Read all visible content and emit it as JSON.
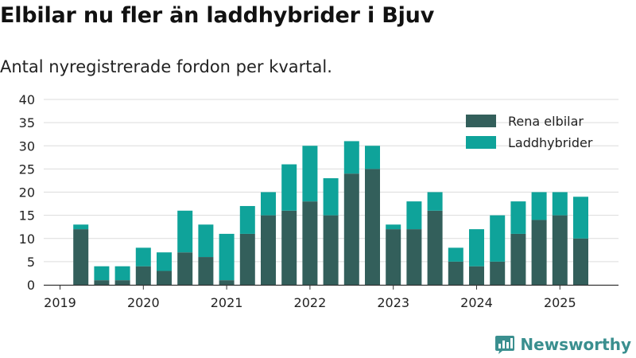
{
  "title": "Elbilar nu fler än laddhybrider i Bjuv",
  "subtitle": "Antal nyregistrerade fordon per kvartal.",
  "brand": {
    "name": "Newsworthy",
    "icon": "newsworthy-logo-icon",
    "color": "#3a8f8f"
  },
  "chart_data": {
    "type": "bar",
    "stacked": true,
    "x": [
      "2019Q1",
      "2019Q2",
      "2019Q3",
      "2019Q4",
      "2020Q1",
      "2020Q2",
      "2020Q3",
      "2020Q4",
      "2021Q1",
      "2021Q2",
      "2021Q3",
      "2021Q4",
      "2022Q1",
      "2022Q2",
      "2022Q3",
      "2022Q4",
      "2023Q1",
      "2023Q2",
      "2023Q3",
      "2023Q4",
      "2024Q1",
      "2024Q2",
      "2024Q3",
      "2024Q4",
      "2025Q1",
      "2025Q2"
    ],
    "series": [
      {
        "name": "Rena elbilar",
        "color": "#335f5b",
        "values": [
          0,
          12,
          1,
          1,
          4,
          3,
          7,
          6,
          1,
          11,
          15,
          16,
          18,
          15,
          24,
          25,
          12,
          12,
          16,
          5,
          4,
          5,
          11,
          14,
          15,
          10
        ]
      },
      {
        "name": "Laddhybrider",
        "color": "#0fa39a",
        "values": [
          0,
          1,
          3,
          3,
          4,
          4,
          9,
          7,
          10,
          6,
          5,
          10,
          12,
          8,
          7,
          5,
          1,
          6,
          4,
          3,
          8,
          10,
          7,
          6,
          5,
          9
        ]
      }
    ],
    "xticks": [
      "2019",
      "2020",
      "2021",
      "2022",
      "2023",
      "2024",
      "2025"
    ],
    "yticks": [
      0,
      5,
      10,
      15,
      20,
      25,
      30,
      35,
      40
    ],
    "ylim": [
      0,
      40
    ],
    "grid": true,
    "legend": "top-right"
  }
}
